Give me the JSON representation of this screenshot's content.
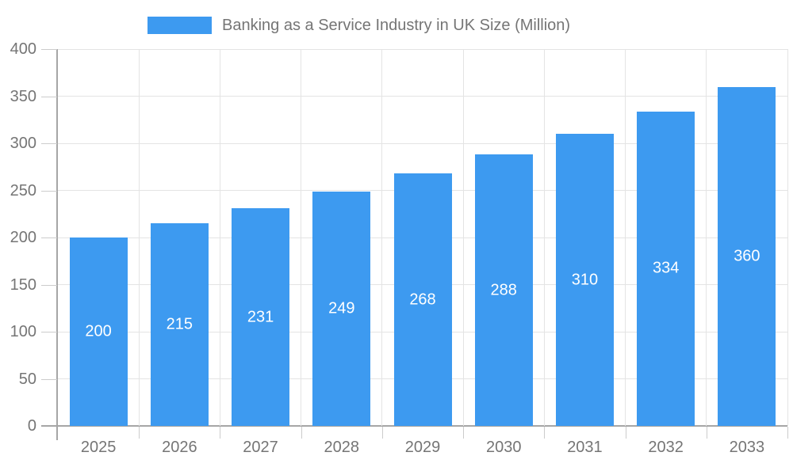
{
  "legend": {
    "label": "Banking as a Service Industry in UK Size (Million)"
  },
  "chart_data": {
    "type": "bar",
    "title": "Banking as a Service Industry in UK Size (Million)",
    "categories": [
      "2025",
      "2026",
      "2027",
      "2028",
      "2029",
      "2030",
      "2031",
      "2032",
      "2033"
    ],
    "values": [
      200,
      215,
      231,
      249,
      268,
      288,
      310,
      334,
      360
    ],
    "xlabel": "",
    "ylabel": "",
    "ylim": [
      0,
      400
    ],
    "yticks": [
      0,
      50,
      100,
      150,
      200,
      250,
      300,
      350,
      400
    ],
    "grid": true,
    "legend_position": "top",
    "value_labels": "inside-center"
  },
  "colors": {
    "bar": "#3D9AF0",
    "axis_text": "#757575",
    "value_label_text": "#FFFFFF",
    "grid_line": "#E4E4E4",
    "axis_line": "#A6A6A6",
    "tick_line": "#CCCCCC",
    "background": "#FFFFFF"
  }
}
